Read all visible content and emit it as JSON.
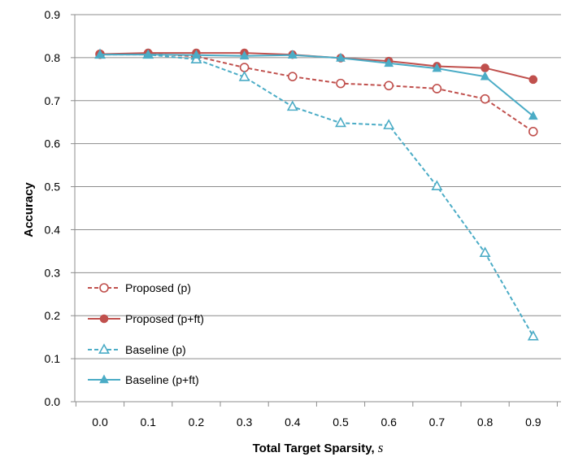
{
  "chart_data": {
    "type": "line",
    "title": "",
    "xlabel": "Total Target Sparsity, ",
    "xlabel_symbol": "s",
    "ylabel": "Accuracy",
    "x": [
      0.0,
      0.1,
      0.2,
      0.3,
      0.4,
      0.5,
      0.6,
      0.7,
      0.8,
      0.9
    ],
    "x_tick_labels": [
      "0.0",
      "0.1",
      "0.2",
      "0.3",
      "0.4",
      "0.5",
      "0.6",
      "0.7",
      "0.8",
      "0.9"
    ],
    "y_tick_labels": [
      "0.0",
      "0.1",
      "0.2",
      "0.3",
      "0.4",
      "0.5",
      "0.6",
      "0.7",
      "0.8",
      "0.9"
    ],
    "ylim": [
      0,
      0.9
    ],
    "grid": "horizontal",
    "legend_position": "bottom-left",
    "series": [
      {
        "name": "Proposed (p)",
        "color": "#C0504D",
        "dash": true,
        "marker": "circle-open",
        "values": [
          0.808,
          0.809,
          0.803,
          0.777,
          0.756,
          0.74,
          0.735,
          0.728,
          0.704,
          0.628
        ]
      },
      {
        "name": "Proposed (p+ft)",
        "color": "#C0504D",
        "dash": false,
        "marker": "circle-filled",
        "values": [
          0.808,
          0.811,
          0.811,
          0.811,
          0.807,
          0.799,
          0.792,
          0.78,
          0.776,
          0.749
        ]
      },
      {
        "name": "Baseline (p)",
        "color": "#4BACC6",
        "dash": true,
        "marker": "triangle-open",
        "values": [
          0.807,
          0.807,
          0.796,
          0.755,
          0.686,
          0.648,
          0.643,
          0.501,
          0.346,
          0.152
        ]
      },
      {
        "name": "Baseline (p+ft)",
        "color": "#4BACC6",
        "dash": false,
        "marker": "triangle-filled",
        "values": [
          0.807,
          0.807,
          0.806,
          0.804,
          0.806,
          0.799,
          0.787,
          0.775,
          0.756,
          0.664
        ]
      }
    ]
  }
}
